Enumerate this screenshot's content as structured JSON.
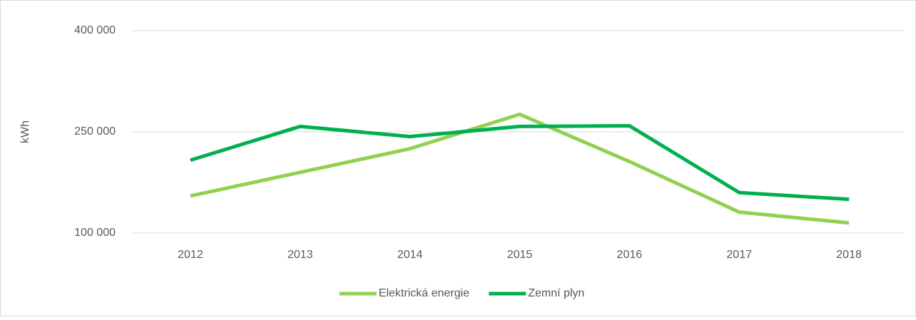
{
  "chart_data": {
    "type": "line",
    "ylabel": "kWh",
    "categories": [
      "2012",
      "2013",
      "2014",
      "2015",
      "2016",
      "2017",
      "2018"
    ],
    "series": [
      {
        "name": "Elektrická energie",
        "color": "#92d050",
        "values": [
          155000,
          190000,
          225000,
          276000,
          206000,
          131000,
          115000
        ]
      },
      {
        "name": "Zemní plyn",
        "color": "#00b050",
        "values": [
          208000,
          258000,
          243000,
          258000,
          259000,
          160000,
          150000
        ]
      }
    ],
    "ylim": [
      100000,
      400000
    ],
    "yticks": [
      {
        "value": 100000,
        "label": "100 000"
      },
      {
        "value": 250000,
        "label": "250 000"
      },
      {
        "value": 400000,
        "label": "400 000"
      }
    ],
    "grid": true,
    "legend": "bottom"
  }
}
